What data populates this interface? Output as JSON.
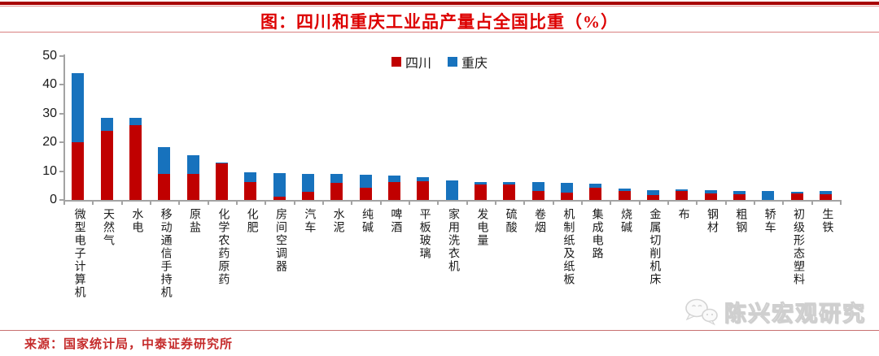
{
  "header": {
    "title": "图：四川和重庆工业品产量占全国比重（%）"
  },
  "legend": {
    "items": [
      {
        "label": "四川",
        "color": "#C00000"
      },
      {
        "label": "重庆",
        "color": "#1772BD"
      }
    ]
  },
  "chart_data": {
    "type": "bar",
    "stacked": true,
    "title": "图：四川和重庆工业品产量占全国比重（%）",
    "categories": [
      "微型电子计算机",
      "天然气",
      "水电",
      "移动通信手持机",
      "原盐",
      "化学农药原药",
      "化肥",
      "房间空调器",
      "汽车",
      "水泥",
      "纯碱",
      "啤酒",
      "平板玻璃",
      "家用洗衣机",
      "发电量",
      "硫酸",
      "卷烟",
      "机制纸及纸板",
      "集成电路",
      "烧碱",
      "金属切削机床",
      "布",
      "钢材",
      "粗钢",
      "轿车",
      "初级形态塑料",
      "生铁"
    ],
    "series": [
      {
        "name": "四川",
        "color": "#C00000",
        "values": [
          20,
          24,
          26,
          9,
          9,
          12.8,
          6.3,
          1,
          2.8,
          6,
          4.2,
          6.3,
          6.5,
          0,
          5.3,
          5.5,
          3.1,
          2.6,
          4.2,
          3,
          1.6,
          3.2,
          2.2,
          2.1,
          0,
          2.3,
          1.9
        ]
      },
      {
        "name": "重庆",
        "color": "#1772BD",
        "values": [
          24,
          4.5,
          2.5,
          9.5,
          6.5,
          0.2,
          3.4,
          8.3,
          6.3,
          3,
          4.6,
          2.2,
          1.3,
          6.8,
          0.9,
          0.8,
          3,
          3.2,
          1.5,
          1,
          1.9,
          0.4,
          1.1,
          1,
          3.2,
          0.5,
          1.2
        ]
      }
    ],
    "xlabel": "",
    "ylabel": "",
    "ylim": [
      0,
      50
    ],
    "yticks": [
      0,
      10,
      20,
      30,
      40,
      50
    ],
    "grid": false,
    "legend_position": "top-center"
  },
  "footer": {
    "source": "来源：国家统计局，中泰证券研究所"
  },
  "watermark": {
    "label": "陈兴宏观研究",
    "icon": "wechat-chat-bubbles-icon"
  }
}
